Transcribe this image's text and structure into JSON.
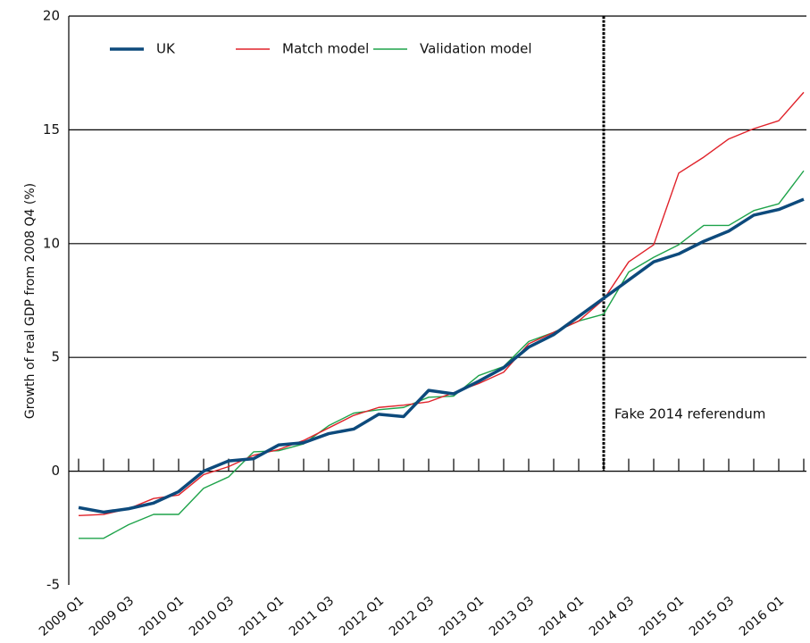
{
  "chart_data": {
    "type": "line",
    "ylabel": "Growth of real GDP from 2008 Q4 (%)",
    "categories": [
      "2009 Q1",
      null,
      "2009 Q3",
      null,
      "2010 Q1",
      null,
      "2010 Q3",
      null,
      "2011 Q1",
      null,
      "2011 Q3",
      null,
      "2012 Q1",
      null,
      "2012 Q3",
      null,
      "2013 Q1",
      null,
      "2013 Q3",
      null,
      "2014 Q1",
      null,
      "2014 Q3",
      null,
      "2015 Q1",
      null,
      "2015 Q3",
      null,
      "2016 Q1",
      null
    ],
    "series": [
      {
        "name": "UK",
        "color": "#0d4a7c",
        "width": 3.5,
        "values": [
          -1.6,
          -1.8,
          -1.65,
          -1.4,
          -0.9,
          0.0,
          0.45,
          0.55,
          1.15,
          1.25,
          1.65,
          1.85,
          2.5,
          2.4,
          3.55,
          3.4,
          3.95,
          4.55,
          5.45,
          6.0,
          6.8,
          7.6,
          8.4,
          9.2,
          9.55,
          10.1,
          10.55,
          11.25,
          11.5,
          11.95
        ]
      },
      {
        "name": "Match model",
        "color": "#e0222a",
        "width": 1.4,
        "values": [
          -1.95,
          -1.9,
          -1.65,
          -1.2,
          -1.05,
          -0.15,
          0.2,
          0.7,
          0.95,
          1.35,
          1.9,
          2.45,
          2.8,
          2.9,
          3.05,
          3.45,
          3.85,
          4.35,
          5.6,
          6.1,
          6.6,
          7.55,
          9.2,
          9.95,
          13.1,
          13.8,
          14.6,
          15.05,
          15.4,
          16.65
        ]
      },
      {
        "name": "Validation model",
        "color": "#1ea34a",
        "width": 1.4,
        "values": [
          -2.95,
          -2.95,
          -2.35,
          -1.9,
          -1.9,
          -0.75,
          -0.25,
          0.85,
          0.9,
          1.2,
          2.0,
          2.55,
          2.7,
          2.8,
          3.25,
          3.3,
          4.2,
          4.6,
          5.7,
          6.1,
          6.6,
          6.9,
          8.75,
          9.4,
          9.95,
          10.8,
          10.8,
          11.45,
          11.75,
          13.2
        ]
      }
    ],
    "annotations": [
      {
        "text": "Fake 2014 referendum",
        "x": 21
      }
    ],
    "ylim": [
      -5,
      20
    ],
    "yticks": [
      -5,
      0,
      5,
      10,
      15,
      20
    ],
    "grid": true,
    "legend": "top-left"
  }
}
